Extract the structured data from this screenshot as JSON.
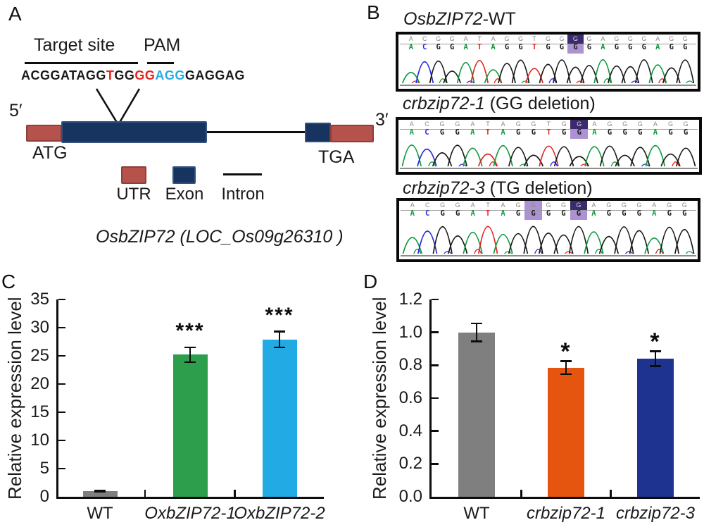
{
  "labels": {
    "a": "A",
    "b": "B",
    "c": "C",
    "d": "D"
  },
  "panelA": {
    "target_site_label": "Target site",
    "pam_label": "PAM",
    "sequence_segments": [
      {
        "text": "ACGGATAGG",
        "color": "#1a1a1a"
      },
      {
        "text": "T",
        "color": "#e8251d"
      },
      {
        "text": "GG",
        "color": "#1a1a1a"
      },
      {
        "text": "GG",
        "color": "#e8251d"
      },
      {
        "text": "AGG",
        "color": "#29abe2"
      },
      {
        "text": "GAGGAG",
        "color": "#1a1a1a"
      }
    ],
    "five_prime": "5′",
    "three_prime": "3′",
    "start_codon": "ATG",
    "stop_codon": "TGA",
    "legend": [
      {
        "label": "UTR",
        "type": "utr"
      },
      {
        "label": "Exon",
        "type": "exon"
      },
      {
        "label": "Intron",
        "type": "intron"
      }
    ],
    "gene_name_italic": "OsbZIP72",
    "gene_locus": " (LOC_Os09g26310 )",
    "colors": {
      "utr": "#b5524c",
      "exon": "#17335f",
      "intron": "#0d0d0d"
    }
  },
  "panelB": {
    "traces": [
      {
        "title_italic": "OsbZIP72",
        "title_rest": "-WT",
        "sequence": "ACGGATAGGTGGGGAGGGAGG",
        "highlights": [
          {
            "index": 12,
            "style": "dark"
          }
        ]
      },
      {
        "title_italic": "crbzip72-1",
        "title_rest": " (GG deletion)",
        "sequence": "ACGGATAGGTGGAGGGAGG",
        "highlights": [
          {
            "index": 11,
            "style": "dark"
          }
        ]
      },
      {
        "title_italic": "crbzip72-3",
        "title_rest": " (TG deletion)",
        "sequence": "ACGGATAGGGGGAGGGAGG",
        "highlights": [
          {
            "index": 8,
            "style": "light"
          },
          {
            "index": 11,
            "style": "dark"
          }
        ]
      }
    ],
    "base_colors": {
      "A": "#0f9b3f",
      "C": "#2a2ae0",
      "G": "#1a1a1a",
      "T": "#e0241d"
    },
    "highlight_light": "#9d7fca",
    "highlight_dark": "#3c2a6e"
  },
  "chart_data": [
    {
      "id": "C",
      "type": "bar",
      "ylabel": "Relative expression level",
      "xlabel": "",
      "ylim": [
        0,
        35
      ],
      "ytick_step": 5,
      "ytick_labels": [
        "0",
        "5",
        "10",
        "15",
        "20",
        "25",
        "30",
        "35"
      ],
      "grid": false,
      "legend_position": "none",
      "categories": [
        "WT",
        "OxbZIP72-1",
        "OxbZIP72-2"
      ],
      "categories_italic": [
        false,
        true,
        true
      ],
      "values": [
        1.0,
        25.2,
        27.9
      ],
      "errors": [
        0.15,
        1.3,
        1.4
      ],
      "significance": [
        "",
        "***",
        "***"
      ],
      "bar_colors": [
        "#7f7f7f",
        "#2d9e4b",
        "#22aae4"
      ]
    },
    {
      "id": "D",
      "type": "bar",
      "ylabel": "Relative expression level",
      "xlabel": "",
      "ylim": [
        0,
        1.2
      ],
      "ytick_step": 0.2,
      "ytick_labels": [
        "0.0",
        "0.2",
        "0.4",
        "0.6",
        "0.8",
        "1.0",
        "1.2"
      ],
      "grid": false,
      "legend_position": "none",
      "categories": [
        "WT",
        "crbzip72-1",
        "crbzip72-3"
      ],
      "categories_italic": [
        false,
        true,
        true
      ],
      "values": [
        1.0,
        0.785,
        0.84
      ],
      "errors": [
        0.055,
        0.04,
        0.045
      ],
      "significance": [
        "",
        "*",
        "*"
      ],
      "bar_colors": [
        "#7f7f7f",
        "#e65510",
        "#1e3390"
      ]
    }
  ]
}
